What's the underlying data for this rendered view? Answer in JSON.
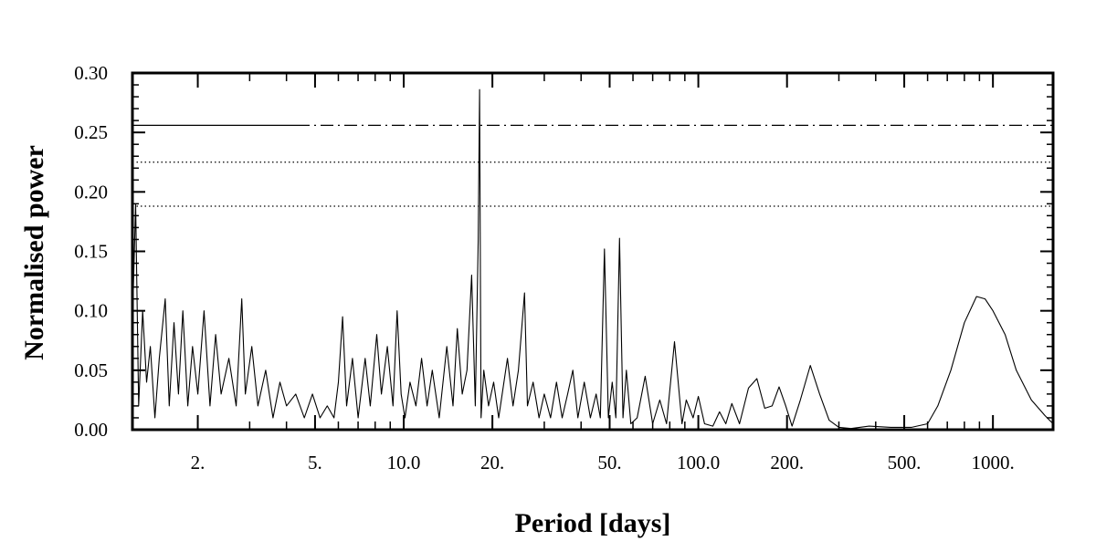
{
  "chart_data": {
    "type": "line",
    "title": "",
    "xlabel": "Period [days]",
    "ylabel": "Normalised power",
    "xscale": "log",
    "xlim": [
      1.2,
      1600
    ],
    "ylim": [
      0,
      0.3
    ],
    "x_ticks": [
      {
        "value": 2,
        "label": "2."
      },
      {
        "value": 5,
        "label": "5."
      },
      {
        "value": 10,
        "label": "10.0"
      },
      {
        "value": 20,
        "label": "20."
      },
      {
        "value": 50,
        "label": "50."
      },
      {
        "value": 100,
        "label": "100.0"
      },
      {
        "value": 200,
        "label": "200."
      },
      {
        "value": 500,
        "label": "500."
      },
      {
        "value": 1000,
        "label": "1000."
      }
    ],
    "y_ticks": [
      {
        "value": 0.0,
        "label": "0.00"
      },
      {
        "value": 0.05,
        "label": "0.05"
      },
      {
        "value": 0.1,
        "label": "0.10"
      },
      {
        "value": 0.15,
        "label": "0.15"
      },
      {
        "value": 0.2,
        "label": "0.20"
      },
      {
        "value": 0.25,
        "label": "0.25"
      },
      {
        "value": 0.3,
        "label": "0.30"
      }
    ],
    "significance_levels": [
      {
        "value": 0.256,
        "style": "dash-dot"
      },
      {
        "value": 0.225,
        "style": "dotted"
      },
      {
        "value": 0.188,
        "style": "dotted"
      }
    ],
    "series": [
      {
        "points": [
          [
            1.2,
            0.09
          ],
          [
            1.23,
            0.19
          ],
          [
            1.26,
            0.02
          ],
          [
            1.3,
            0.1
          ],
          [
            1.34,
            0.04
          ],
          [
            1.38,
            0.07
          ],
          [
            1.43,
            0.01
          ],
          [
            1.48,
            0.06
          ],
          [
            1.55,
            0.11
          ],
          [
            1.6,
            0.02
          ],
          [
            1.66,
            0.09
          ],
          [
            1.72,
            0.03
          ],
          [
            1.78,
            0.1
          ],
          [
            1.85,
            0.02
          ],
          [
            1.92,
            0.07
          ],
          [
            2.0,
            0.03
          ],
          [
            2.1,
            0.1
          ],
          [
            2.2,
            0.02
          ],
          [
            2.3,
            0.08
          ],
          [
            2.4,
            0.03
          ],
          [
            2.55,
            0.06
          ],
          [
            2.7,
            0.02
          ],
          [
            2.82,
            0.11
          ],
          [
            2.9,
            0.03
          ],
          [
            3.05,
            0.07
          ],
          [
            3.2,
            0.02
          ],
          [
            3.4,
            0.05
          ],
          [
            3.6,
            0.01
          ],
          [
            3.8,
            0.04
          ],
          [
            4.0,
            0.02
          ],
          [
            4.3,
            0.03
          ],
          [
            4.6,
            0.01
          ],
          [
            4.9,
            0.03
          ],
          [
            5.2,
            0.01
          ],
          [
            5.5,
            0.02
          ],
          [
            5.8,
            0.01
          ],
          [
            6.0,
            0.04
          ],
          [
            6.2,
            0.095
          ],
          [
            6.4,
            0.02
          ],
          [
            6.7,
            0.06
          ],
          [
            7.0,
            0.01
          ],
          [
            7.4,
            0.06
          ],
          [
            7.7,
            0.02
          ],
          [
            8.1,
            0.08
          ],
          [
            8.4,
            0.03
          ],
          [
            8.8,
            0.07
          ],
          [
            9.2,
            0.02
          ],
          [
            9.5,
            0.1
          ],
          [
            9.8,
            0.03
          ],
          [
            10.1,
            0.01
          ],
          [
            10.5,
            0.04
          ],
          [
            11.0,
            0.02
          ],
          [
            11.5,
            0.06
          ],
          [
            12.0,
            0.02
          ],
          [
            12.5,
            0.05
          ],
          [
            13.2,
            0.01
          ],
          [
            14.0,
            0.07
          ],
          [
            14.7,
            0.02
          ],
          [
            15.2,
            0.085
          ],
          [
            15.8,
            0.03
          ],
          [
            16.4,
            0.05
          ],
          [
            17.0,
            0.13
          ],
          [
            17.5,
            0.02
          ],
          [
            17.9,
            0.16
          ],
          [
            18.1,
            0.286
          ],
          [
            18.3,
            0.01
          ],
          [
            18.7,
            0.05
          ],
          [
            19.4,
            0.02
          ],
          [
            20.2,
            0.04
          ],
          [
            21.0,
            0.01
          ],
          [
            22.5,
            0.06
          ],
          [
            23.5,
            0.02
          ],
          [
            24.5,
            0.05
          ],
          [
            25.7,
            0.115
          ],
          [
            26.3,
            0.02
          ],
          [
            27.5,
            0.04
          ],
          [
            28.8,
            0.01
          ],
          [
            30.0,
            0.03
          ],
          [
            31.5,
            0.01
          ],
          [
            33.0,
            0.04
          ],
          [
            34.5,
            0.01
          ],
          [
            36.0,
            0.03
          ],
          [
            37.5,
            0.05
          ],
          [
            39.0,
            0.01
          ],
          [
            41.0,
            0.04
          ],
          [
            43.0,
            0.01
          ],
          [
            45.0,
            0.03
          ],
          [
            46.5,
            0.01
          ],
          [
            48.0,
            0.152
          ],
          [
            49.5,
            0.01
          ],
          [
            51.0,
            0.04
          ],
          [
            52.5,
            0.01
          ],
          [
            54.0,
            0.161
          ],
          [
            55.5,
            0.01
          ],
          [
            57.0,
            0.05
          ],
          [
            59.0,
            0.005
          ],
          [
            62.0,
            0.01
          ],
          [
            66.0,
            0.045
          ],
          [
            70.0,
            0.005
          ],
          [
            74.0,
            0.025
          ],
          [
            78.0,
            0.005
          ],
          [
            83.0,
            0.074
          ],
          [
            88.0,
            0.005
          ],
          [
            91.0,
            0.025
          ],
          [
            96.0,
            0.01
          ],
          [
            100.0,
            0.028
          ],
          [
            105.0,
            0.005
          ],
          [
            112.0,
            0.003
          ],
          [
            118.0,
            0.015
          ],
          [
            124.0,
            0.005
          ],
          [
            130.0,
            0.022
          ],
          [
            138.0,
            0.005
          ],
          [
            148.0,
            0.035
          ],
          [
            158.0,
            0.043
          ],
          [
            168.0,
            0.018
          ],
          [
            178.0,
            0.02
          ],
          [
            188.0,
            0.036
          ],
          [
            198.0,
            0.02
          ],
          [
            208.0,
            0.003
          ],
          [
            222.0,
            0.025
          ],
          [
            240.0,
            0.054
          ],
          [
            258.0,
            0.03
          ],
          [
            278.0,
            0.008
          ],
          [
            300.0,
            0.002
          ],
          [
            330.0,
            0.001
          ],
          [
            380.0,
            0.003
          ],
          [
            450.0,
            0.002
          ],
          [
            530.0,
            0.002
          ],
          [
            600.0,
            0.005
          ],
          [
            650.0,
            0.02
          ],
          [
            720.0,
            0.05
          ],
          [
            800.0,
            0.09
          ],
          [
            880.0,
            0.112
          ],
          [
            940.0,
            0.11
          ],
          [
            1000.0,
            0.1
          ],
          [
            1100.0,
            0.08
          ],
          [
            1200.0,
            0.05
          ],
          [
            1350.0,
            0.025
          ],
          [
            1500.0,
            0.012
          ],
          [
            1600.0,
            0.005
          ]
        ]
      }
    ]
  }
}
